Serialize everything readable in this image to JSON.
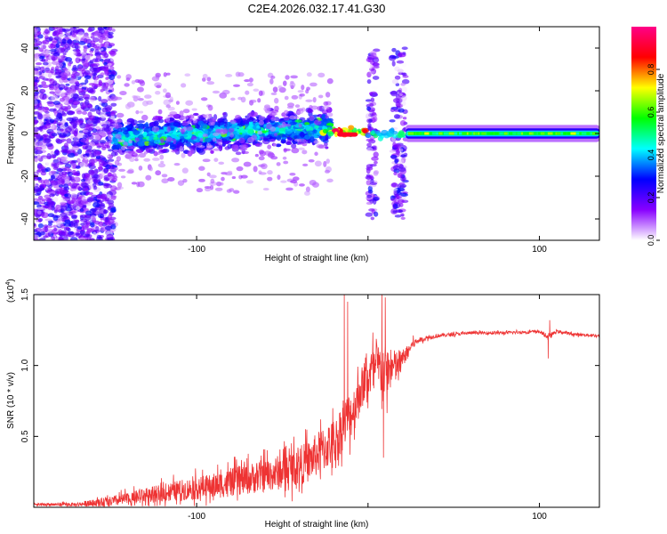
{
  "figure_title": "C2E4.2026.032.17.41.G30",
  "chart_data": [
    {
      "type": "heatmap",
      "title": "C2E4.2026.032.17.41.G30",
      "xlabel": "Height of straight line (km)",
      "ylabel": "Frequency (Hz)",
      "xlim": [
        -195,
        135
      ],
      "ylim": [
        -50,
        50
      ],
      "xticks": [
        -100,
        0,
        100
      ],
      "xtick_labels": [
        "-100",
        "",
        "100"
      ],
      "yticks": [
        -40,
        -20,
        0,
        20,
        40
      ],
      "ytick_labels": [
        "-40",
        "-20",
        "0",
        "20",
        "40"
      ],
      "colorbar": {
        "label": "Normalized spectral amplitude",
        "range": [
          0,
          1
        ],
        "ticks": [
          0,
          0.2,
          0.4,
          0.6,
          0.8
        ],
        "tick_labels": [
          "0.0",
          "0.2",
          "0.4",
          "0.6",
          "0.8"
        ],
        "colormap": [
          "#ffffff",
          "#8800ff",
          "#0000ff",
          "#00ffff",
          "#00ff00",
          "#ffff00",
          "#ff0000",
          "#ff0088"
        ]
      },
      "regions": [
        {
          "name": "noise",
          "x_range": [
            -195,
            -148
          ],
          "freq_spread_hz": 50,
          "amplitude": 0.15
        },
        {
          "name": "broadband",
          "x_range": [
            -148,
            -22
          ],
          "center_hz_start": -2,
          "center_hz_end": 3,
          "freq_spread_hz": 10,
          "amplitude": 0.4
        },
        {
          "name": "burst",
          "x_range": [
            0,
            22
          ],
          "freq_spread_hz": 40,
          "amplitude": 0.15
        },
        {
          "name": "steady-line",
          "x_range": [
            22,
            135
          ],
          "center_hz": 0,
          "freq_spread_hz": 4,
          "amplitude": 0.55
        }
      ]
    },
    {
      "type": "line",
      "xlabel": "Height of straight line (km)",
      "ylabel": "SNR (10 * v/v)",
      "y_multiplier_label": "(x10",
      "y_multiplier_exponent": "4",
      "y_multiplier_close": ")",
      "xlim": [
        -195,
        135
      ],
      "ylim": [
        0,
        1.5
      ],
      "xticks": [
        -100,
        0,
        100
      ],
      "xtick_labels": [
        "-100",
        "",
        "100"
      ],
      "yticks": [
        0.5,
        1.0,
        1.5
      ],
      "ytick_labels": [
        "0.5",
        "1.0",
        "1.5"
      ],
      "color": "#ee3333",
      "series": [
        {
          "name": "SNR",
          "x": [
            -195,
            -170,
            -150,
            -130,
            -110,
            -90,
            -70,
            -50,
            -35,
            -25,
            -18,
            -15,
            -12,
            -8,
            -5,
            -2,
            2,
            6,
            10,
            14,
            18,
            22,
            26,
            30,
            40,
            60,
            80,
            100,
            105,
            110,
            120,
            135
          ],
          "y": [
            0.02,
            0.02,
            0.04,
            0.08,
            0.12,
            0.15,
            0.2,
            0.25,
            0.32,
            0.42,
            0.48,
            0.58,
            0.62,
            0.7,
            0.82,
            0.88,
            0.95,
            0.98,
            0.95,
            0.98,
            1.0,
            1.08,
            1.15,
            1.18,
            1.21,
            1.23,
            1.23,
            1.24,
            1.2,
            1.24,
            1.22,
            1.21
          ],
          "noise": [
            0.01,
            0.015,
            0.04,
            0.06,
            0.08,
            0.1,
            0.12,
            0.14,
            0.16,
            0.18,
            0.18,
            0.2,
            0.2,
            0.18,
            0.18,
            0.15,
            0.2,
            0.2,
            0.22,
            0.15,
            0.12,
            0.05,
            0.04,
            0.02,
            0.015,
            0.012,
            0.012,
            0.012,
            0.02,
            0.012,
            0.012,
            0.012
          ]
        }
      ],
      "spikes": [
        {
          "x": -14,
          "y": 1.5
        },
        {
          "x": -12,
          "y": 1.45
        },
        {
          "x": 8,
          "y": 1.5
        },
        {
          "x": 10,
          "y": 1.48
        },
        {
          "x": 9,
          "y": 0.35
        },
        {
          "x": 106,
          "y": 1.32
        },
        {
          "x": 105,
          "y": 1.05
        }
      ]
    }
  ]
}
